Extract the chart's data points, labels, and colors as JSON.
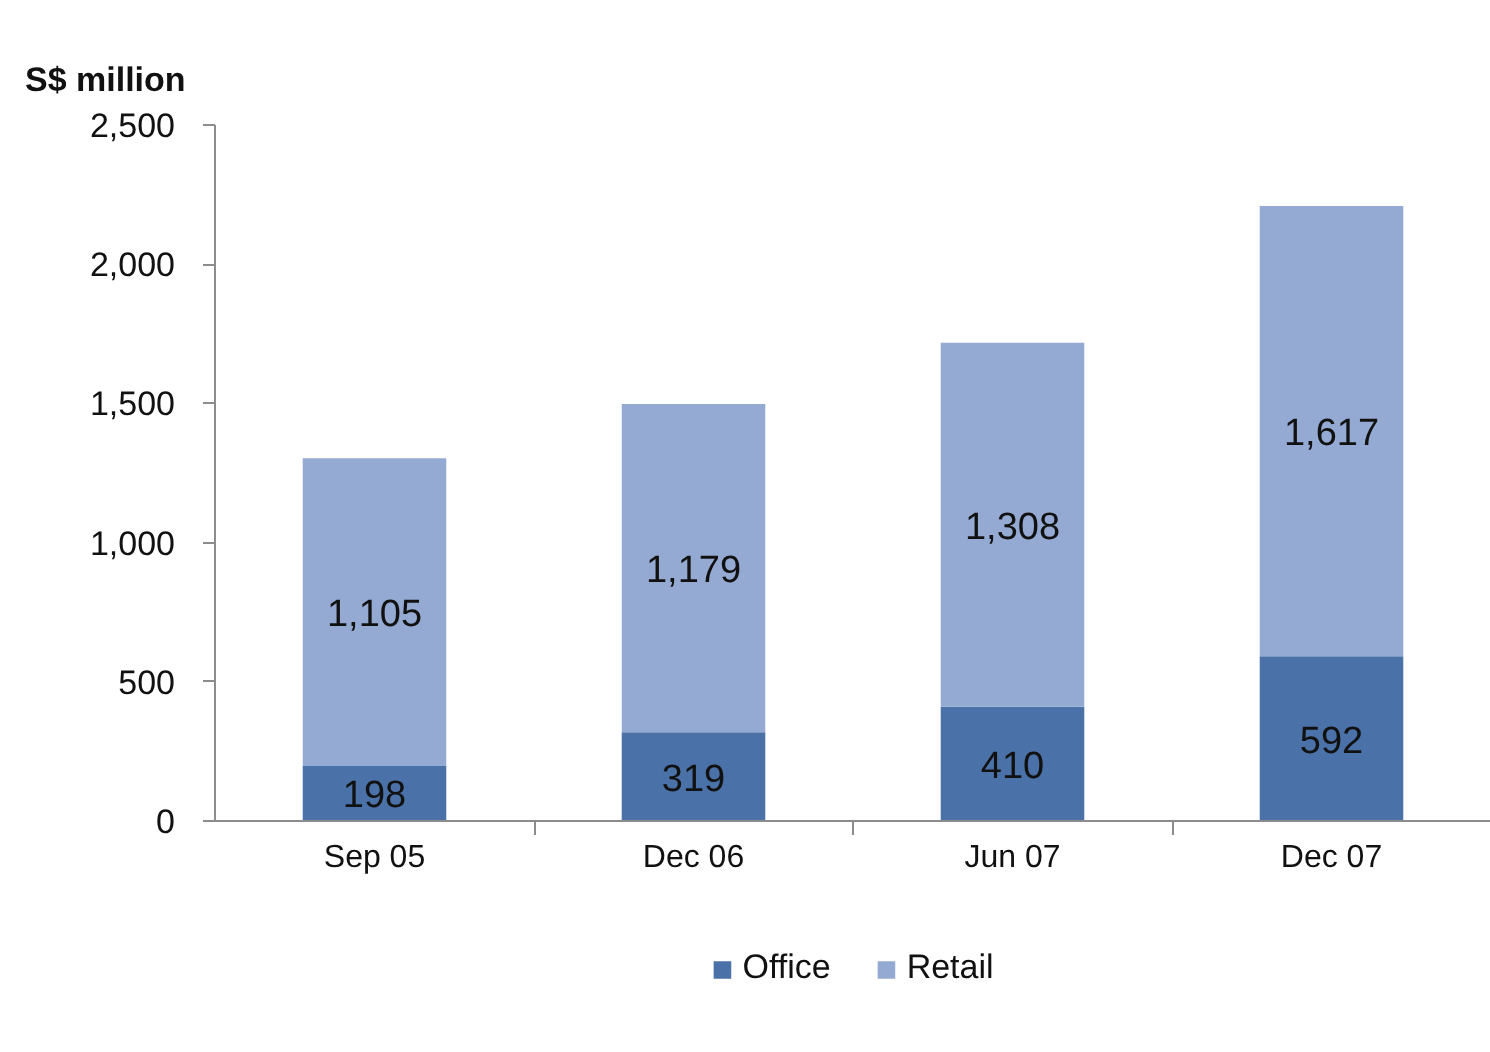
{
  "chart_data": {
    "type": "bar",
    "ylabel": "S$ million",
    "categories": [
      "Sep 05",
      "Dec 06",
      "Jun 07",
      "Dec 07"
    ],
    "stacked": true,
    "series": [
      {
        "name": "Office",
        "color": "#4a72a8",
        "values": [
          198,
          319,
          410,
          592
        ],
        "value_labels": [
          "198",
          "319",
          "410",
          "592"
        ]
      },
      {
        "name": "Retail",
        "color": "#94aad2",
        "values": [
          1105,
          1179,
          1308,
          1617
        ],
        "value_labels": [
          "1,105",
          "1,179",
          "1,308",
          "1,617"
        ]
      }
    ],
    "ylim": [
      0,
      2500
    ],
    "yticks": [
      0,
      500,
      {
        "value": 1000,
        "label": "1,000"
      },
      {
        "value": 1500,
        "label": "1,500"
      },
      {
        "value": 2000,
        "label": "2,000"
      },
      {
        "value": 2500,
        "label": "2,500"
      }
    ],
    "legend": "bottom"
  }
}
